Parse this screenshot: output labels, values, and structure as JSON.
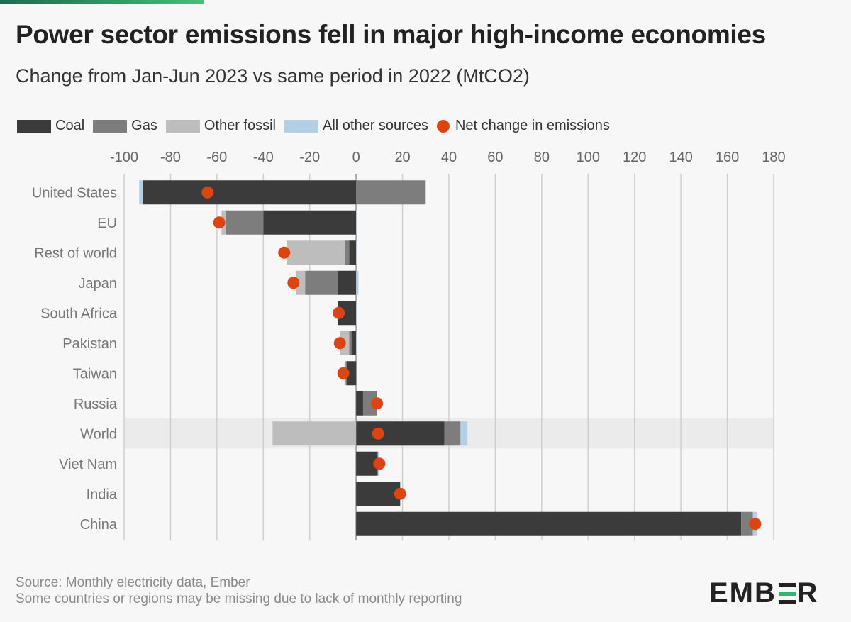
{
  "title": "Power sector emissions fell in major high-income economies",
  "subtitle": "Change from Jan-Jun 2023 vs same period in 2022 (MtCO2)",
  "legend": {
    "coal": "Coal",
    "gas": "Gas",
    "other_fossil": "Other fossil",
    "other_sources": "All other sources",
    "net": "Net change in emissions"
  },
  "colors": {
    "coal": "#3b3b3b",
    "gas": "#7d7d7d",
    "other_fossil": "#bdbdbd",
    "other_sources": "#b3cfe3",
    "net": "#e0440e",
    "highlight_row": "#ebebeb"
  },
  "source_line1": "Source: Monthly electricity data, Ember",
  "source_line2": "Some countries or regions may be missing due to lack of monthly reporting",
  "logo": "EMBER",
  "chart_data": {
    "type": "bar",
    "orientation": "horizontal",
    "stacked": true,
    "xlim": [
      -100,
      180
    ],
    "ticks": [
      "-100",
      "-80",
      "-60",
      "-40",
      "-20",
      "0",
      "20",
      "40",
      "60",
      "80",
      "100",
      "120",
      "140",
      "160",
      "180"
    ],
    "tick_values": [
      -100,
      -80,
      -60,
      -40,
      -20,
      0,
      20,
      40,
      60,
      80,
      100,
      120,
      140,
      160,
      180
    ],
    "highlight_category": "World",
    "categories": [
      "United States",
      "EU",
      "Rest of world",
      "Japan",
      "South Africa",
      "Pakistan",
      "Taiwan",
      "Russia",
      "World",
      "Viet Nam",
      "India",
      "China"
    ],
    "series": [
      {
        "name": "Coal",
        "values": [
          -92,
          -40,
          -3,
          -8,
          -8,
          -2,
          -4,
          3,
          38,
          9,
          19,
          166
        ]
      },
      {
        "name": "Gas",
        "values": [
          30,
          -16,
          -2,
          -14,
          0,
          -1,
          -0.5,
          6,
          7,
          0.5,
          0,
          5
        ]
      },
      {
        "name": "Other fossil",
        "values": [
          0,
          -2,
          -25,
          -4,
          0,
          -4,
          -0.5,
          0,
          -36,
          0,
          0,
          0
        ]
      },
      {
        "name": "All other sources",
        "values": [
          -1.5,
          0.5,
          0.5,
          1,
          0.5,
          0.5,
          0,
          0,
          3,
          0.5,
          0,
          2
        ]
      }
    ],
    "net_change": [
      -64,
      -59,
      -31,
      -27,
      -7.5,
      -7,
      -5.5,
      9,
      9.5,
      10,
      19,
      172
    ]
  }
}
